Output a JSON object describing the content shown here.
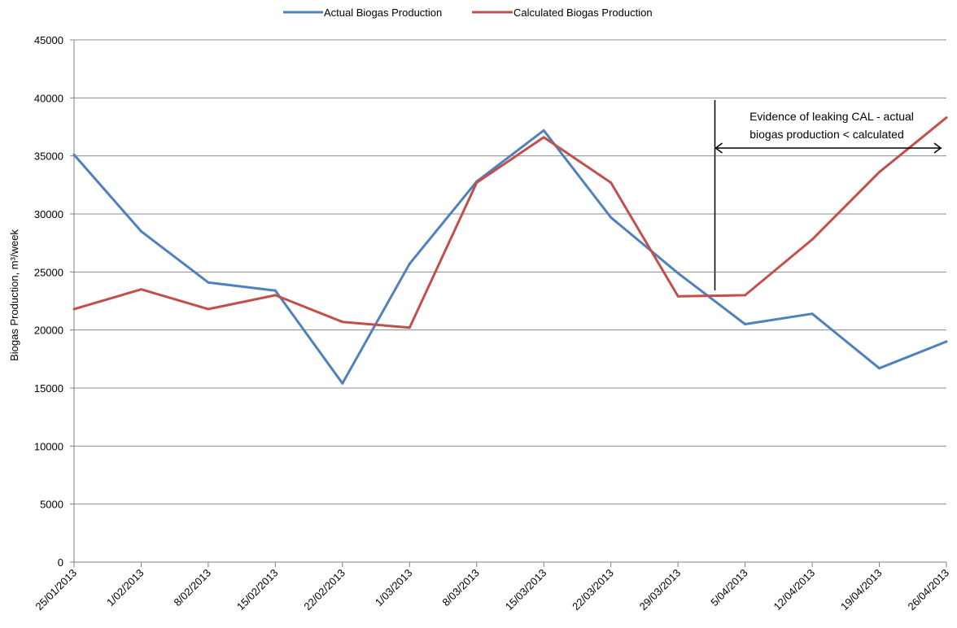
{
  "chart_data": {
    "type": "line",
    "title": "",
    "xlabel": "",
    "ylabel": "Biogas Production, m³/week",
    "ylim": [
      0,
      45000
    ],
    "yticks": [
      0,
      5000,
      10000,
      15000,
      20000,
      25000,
      30000,
      35000,
      40000,
      45000
    ],
    "categories": [
      "25/01/2013",
      "1/02/2013",
      "8/02/2013",
      "15/02/2013",
      "22/02/2013",
      "1/03/2013",
      "8/03/2013",
      "15/03/2013",
      "22/03/2013",
      "29/03/2013",
      "5/04/2013",
      "12/04/2013",
      "19/04/2013",
      "26/04/2013"
    ],
    "grid": true,
    "legend_position": "top-center",
    "series": [
      {
        "name": "Actual Biogas Production",
        "color": "#4F81BD",
        "values": [
          35100,
          28500,
          24100,
          23400,
          15400,
          25700,
          32800,
          37200,
          29700,
          24900,
          20500,
          21400,
          16700,
          19000
        ]
      },
      {
        "name": "Calculated Biogas Production",
        "color": "#C0504D",
        "values": [
          21800,
          23500,
          21800,
          23000,
          20700,
          20200,
          32700,
          36600,
          32700,
          22900,
          23000,
          27800,
          33600,
          38300
        ]
      }
    ],
    "annotation": {
      "lines": [
        "Evidence of leaking CAL - actual",
        "biogas production < calculated"
      ],
      "arrow_from_category": "29/03/2013",
      "arrow_to_category": "26/04/2013"
    }
  }
}
